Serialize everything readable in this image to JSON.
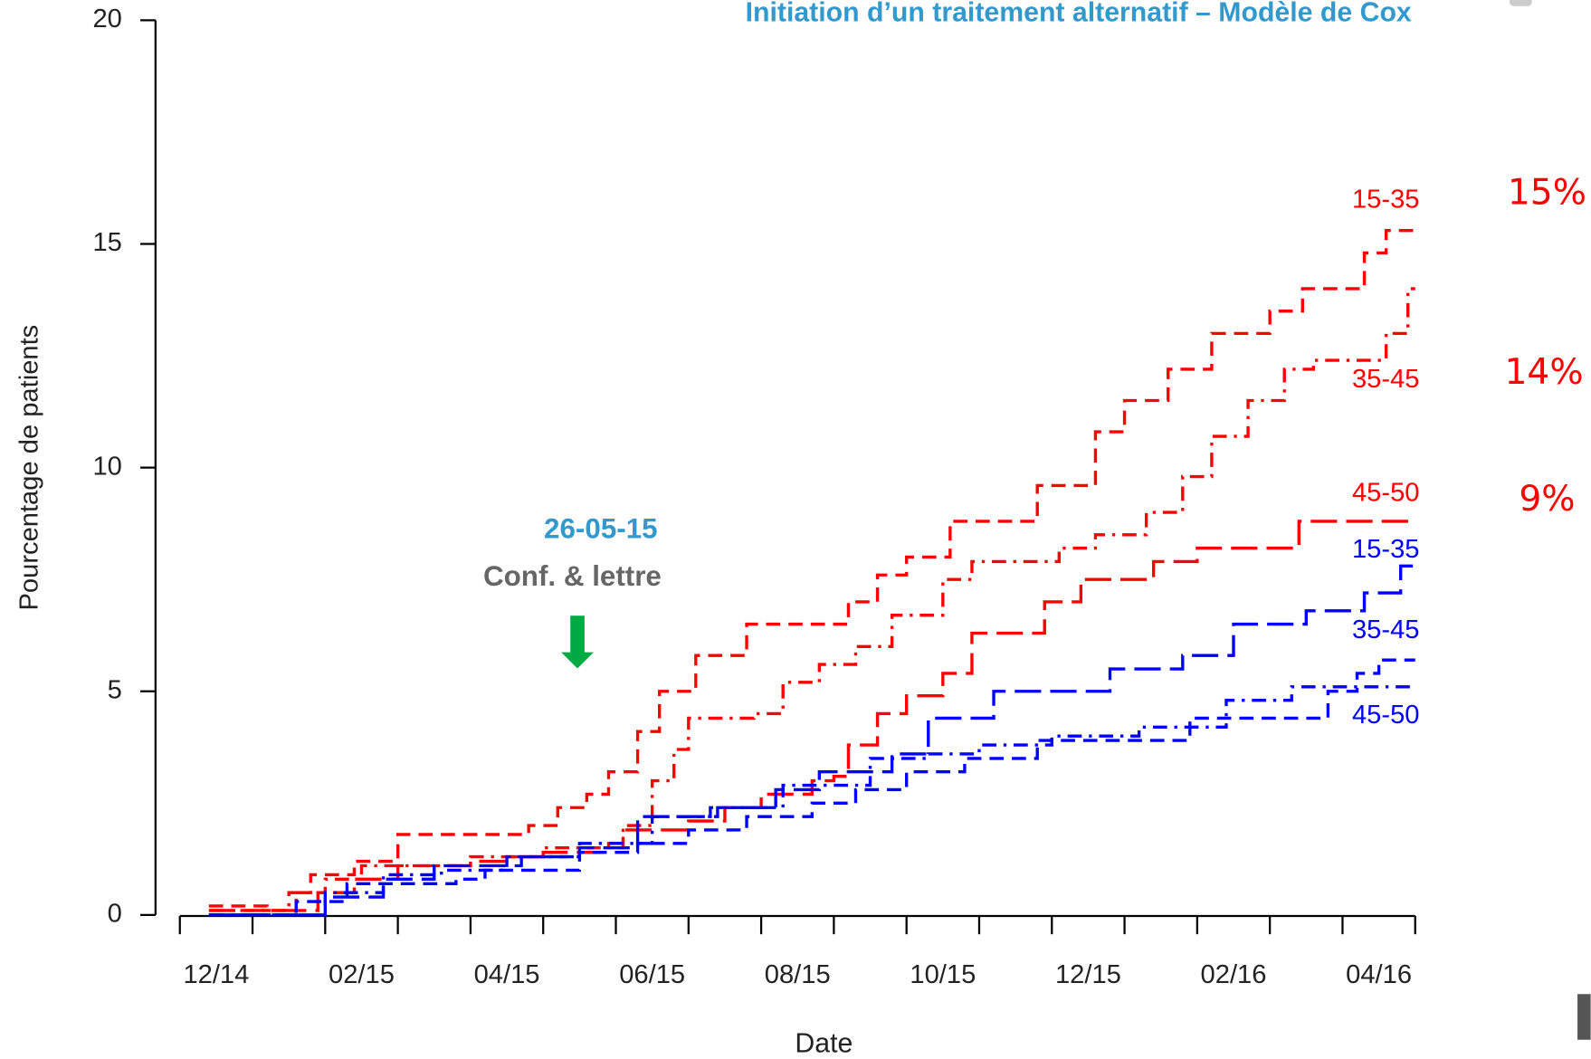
{
  "chart_data": {
    "type": "line",
    "title": "Initiation d’un traitement alternatif – Modèle de Cox",
    "x_label": "Date",
    "y_label": "Pourcentage de patients",
    "xlim": [
      0,
      17
    ],
    "xtick_marks": [
      0,
      1,
      2,
      3,
      4,
      5,
      6,
      7,
      8,
      9,
      10,
      11,
      12,
      13,
      14,
      15,
      16,
      17
    ],
    "xticks": [
      {
        "value": 0.5,
        "label": "12/14"
      },
      {
        "value": 2.5,
        "label": "02/15"
      },
      {
        "value": 4.5,
        "label": "04/15"
      },
      {
        "value": 6.5,
        "label": "06/15"
      },
      {
        "value": 8.5,
        "label": "08/15"
      },
      {
        "value": 10.5,
        "label": "10/15"
      },
      {
        "value": 12.5,
        "label": "12/15"
      },
      {
        "value": 14.5,
        "label": "02/16"
      },
      {
        "value": 16.5,
        "label": "04/16"
      }
    ],
    "ylim": [
      0,
      20
    ],
    "yticks": [
      0,
      5,
      10,
      15,
      20
    ],
    "series": [
      {
        "name": "15-35",
        "color": "#ff0000",
        "linestyle": "dashed",
        "x": [
          0.4,
          1.2,
          1.6,
          1.8,
          2.4,
          3.0,
          4.8,
          5.2,
          5.6,
          5.9,
          6.3,
          6.6,
          7.1,
          7.8,
          9.2,
          9.6,
          10.0,
          10.6,
          11.8,
          12.6,
          13.0,
          13.6,
          14.2,
          15.0,
          15.45,
          16.3,
          16.6,
          17.0
        ],
        "values": [
          0.2,
          0.1,
          0.5,
          0.9,
          1.2,
          1.8,
          2.0,
          2.4,
          2.7,
          3.2,
          4.1,
          5.0,
          5.8,
          6.5,
          7.0,
          7.6,
          8.0,
          8.8,
          9.6,
          10.8,
          11.5,
          12.2,
          13.0,
          13.5,
          14.0,
          14.8,
          15.3,
          15.3
        ]
      },
      {
        "name": "35-45",
        "color": "#ff0000",
        "linestyle": "dashdot",
        "x": [
          0.4,
          1.5,
          2.0,
          2.5,
          4.0,
          5.0,
          6.1,
          6.5,
          6.8,
          7.0,
          7.9,
          8.3,
          8.8,
          9.3,
          9.8,
          10.5,
          10.9,
          12.1,
          12.6,
          13.3,
          13.8,
          14.2,
          14.7,
          15.2,
          15.6,
          16.6,
          16.9,
          17.0
        ],
        "values": [
          0.1,
          0.5,
          0.8,
          1.1,
          1.3,
          1.5,
          2.0,
          3.0,
          3.7,
          4.4,
          4.5,
          5.2,
          5.6,
          6.0,
          6.7,
          7.5,
          7.9,
          8.2,
          8.5,
          9.0,
          9.8,
          10.7,
          11.5,
          12.2,
          12.4,
          13.0,
          14.0,
          14.0
        ]
      },
      {
        "name": "45-50",
        "color": "#ff0000",
        "linestyle": "longdash",
        "x": [
          0.4,
          1.9,
          2.4,
          3.0,
          4.0,
          4.5,
          5.0,
          5.9,
          6.1,
          7.0,
          7.5,
          8.0,
          8.7,
          9.0,
          9.2,
          9.6,
          10.0,
          10.5,
          10.9,
          11.9,
          12.4,
          13.4,
          14.0,
          15.4,
          17.0
        ],
        "values": [
          0.1,
          0.5,
          0.8,
          1.1,
          1.2,
          1.3,
          1.4,
          1.6,
          1.9,
          2.1,
          2.4,
          2.7,
          3.0,
          3.1,
          3.8,
          4.5,
          4.9,
          5.4,
          6.3,
          7.0,
          7.5,
          7.9,
          8.2,
          8.8,
          8.8
        ]
      },
      {
        "name": "15-35",
        "color": "#0000ff",
        "linestyle": "longdash",
        "x": [
          0.4,
          2.0,
          2.8,
          3.5,
          4.7,
          5.5,
          6.3,
          7.4,
          8.2,
          8.8,
          9.8,
          10.3,
          11.2,
          12.8,
          13.8,
          14.5,
          15.5,
          16.3,
          16.8,
          17.0
        ],
        "values": [
          0.0,
          0.4,
          0.8,
          1.1,
          1.3,
          1.5,
          2.2,
          2.4,
          2.8,
          3.2,
          3.6,
          4.4,
          5.0,
          5.5,
          5.8,
          6.5,
          6.8,
          7.2,
          7.8,
          7.8
        ]
      },
      {
        "name": "35-45",
        "color": "#0000ff",
        "linestyle": "dashed",
        "x": [
          0.4,
          1.6,
          2.3,
          3.8,
          4.2,
          5.5,
          6.3,
          7.0,
          7.8,
          8.7,
          9.3,
          10.0,
          10.8,
          11.8,
          13.9,
          15.8,
          16.2,
          16.5,
          17.0
        ],
        "values": [
          0.0,
          0.3,
          0.7,
          0.8,
          1.0,
          1.4,
          1.6,
          1.9,
          2.2,
          2.5,
          2.8,
          3.2,
          3.5,
          3.9,
          4.4,
          5.0,
          5.4,
          5.7,
          5.7
        ]
      },
      {
        "name": "45-50",
        "color": "#0000ff",
        "linestyle": "dashdot",
        "x": [
          0.4,
          2.0,
          2.8,
          3.6,
          4.5,
          5.5,
          6.5,
          7.3,
          8.3,
          9.5,
          10.3,
          11.0,
          12.0,
          13.2,
          14.4,
          15.3,
          17.0
        ],
        "values": [
          0.0,
          0.5,
          0.9,
          1.0,
          1.3,
          1.6,
          2.2,
          2.4,
          2.9,
          3.5,
          3.6,
          3.8,
          4.0,
          4.2,
          4.8,
          5.1,
          5.1
        ]
      }
    ],
    "annotations": [
      {
        "text": "26-05-15",
        "color": "#3399cc"
      },
      {
        "text": "Conf. & lettre",
        "color": "#666666"
      },
      {
        "text": "15%",
        "color": "#ff0000"
      },
      {
        "text": "14%",
        "color": "#ff0000"
      },
      {
        "text": "9%",
        "color": "#ff0000"
      }
    ]
  }
}
